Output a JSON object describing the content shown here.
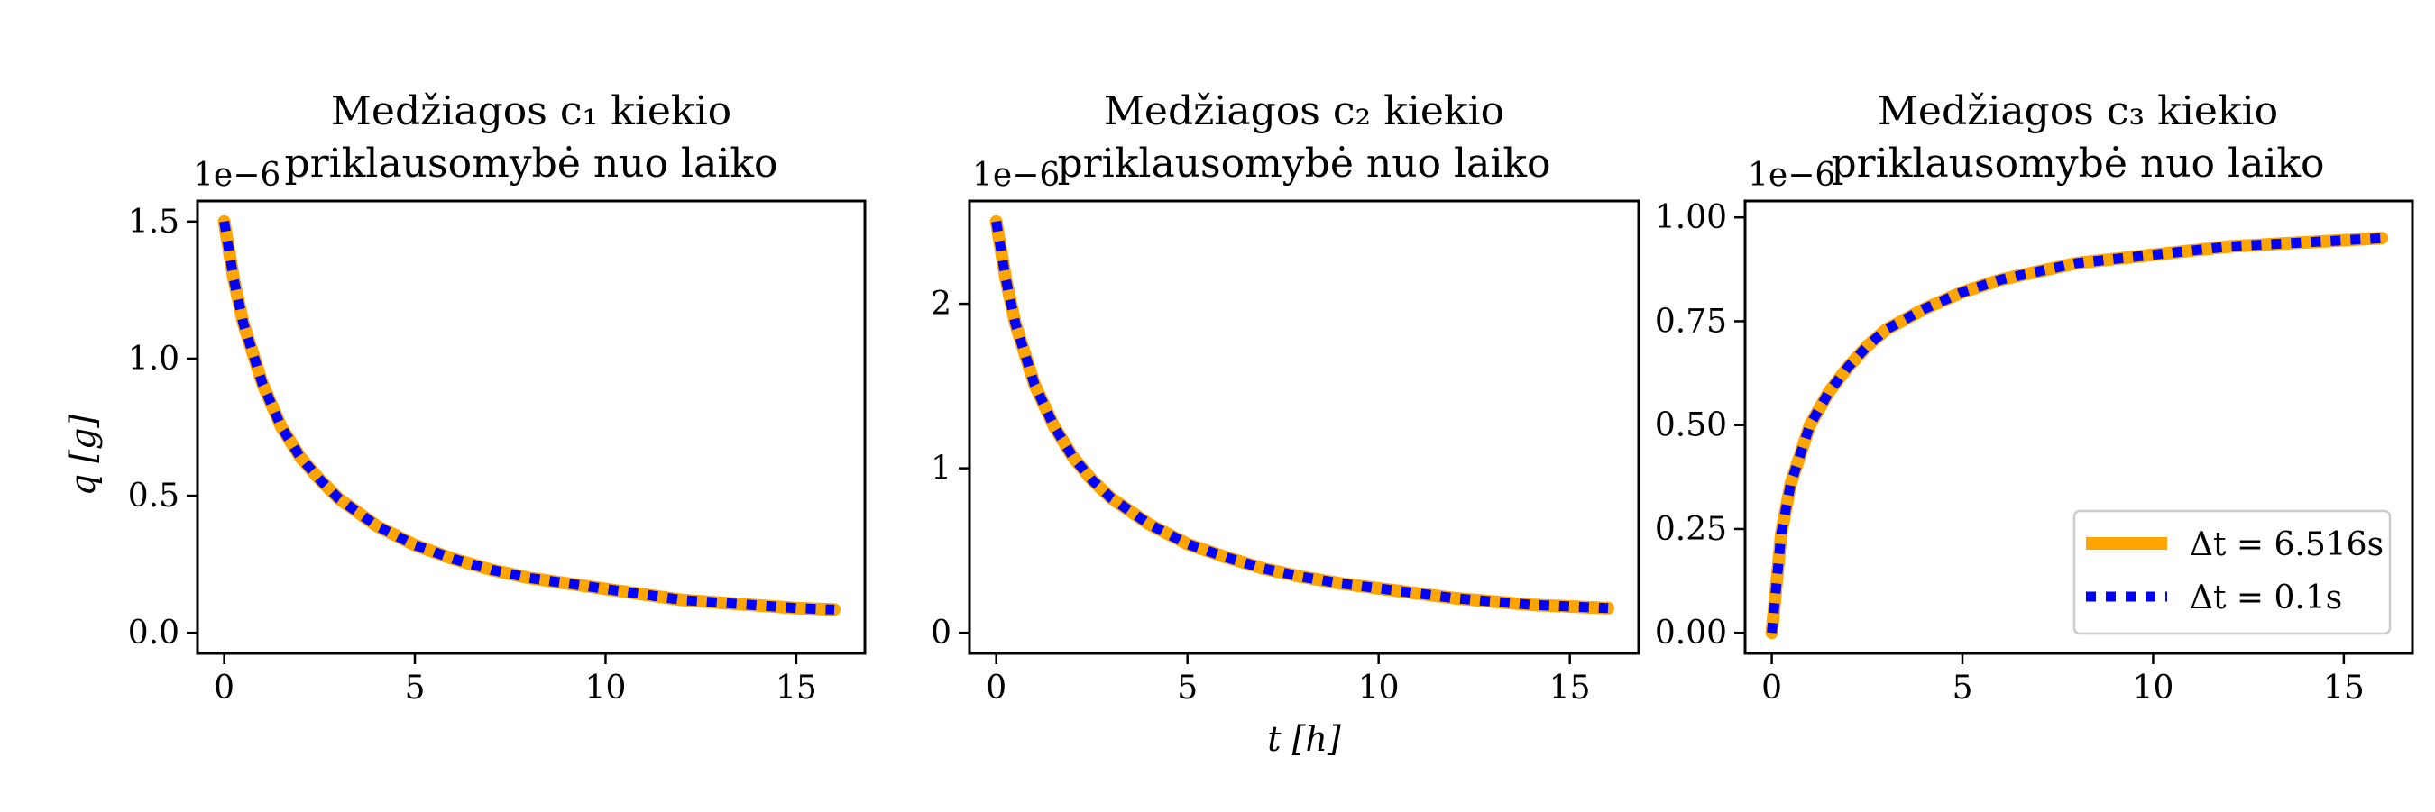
{
  "chart_data": [
    {
      "type": "line",
      "title_line1": "Medžiagos c₁ kiekio",
      "title_line2": "priklausomybė nuo laiko",
      "xlabel": "",
      "ylabel": "q   [g]",
      "offset_text": "1e−6",
      "xlim": [
        -0.7,
        16.8
      ],
      "ylim": [
        -0.075,
        1.575
      ],
      "xticks": [
        0,
        5,
        10,
        15
      ],
      "xtick_labels": [
        "0",
        "5",
        "10",
        "15"
      ],
      "yticks": [
        0.0,
        0.5,
        1.0,
        1.5
      ],
      "ytick_labels": [
        "0.0",
        "0.5",
        "1.0",
        "1.5"
      ],
      "model": "decay",
      "y0": 1.5,
      "x": [
        0,
        0.25,
        0.5,
        1,
        1.5,
        2,
        2.5,
        3,
        4,
        5,
        6,
        7,
        8,
        9,
        10,
        11,
        12,
        13,
        14,
        15,
        16
      ],
      "series": [
        {
          "name": "Δt = 6.516s",
          "color": "#FFA500",
          "style": "solid",
          "values": [
            1.5,
            1.29,
            1.13,
            0.91,
            0.75,
            0.64,
            0.56,
            0.49,
            0.39,
            0.32,
            0.27,
            0.23,
            0.2,
            0.18,
            0.16,
            0.14,
            0.12,
            0.11,
            0.1,
            0.09,
            0.085
          ]
        },
        {
          "name": "Δt = 0.1s",
          "color": "#0000FF",
          "style": "dotted",
          "values": [
            1.5,
            1.29,
            1.13,
            0.91,
            0.75,
            0.64,
            0.56,
            0.49,
            0.39,
            0.32,
            0.27,
            0.23,
            0.2,
            0.18,
            0.16,
            0.14,
            0.12,
            0.11,
            0.1,
            0.09,
            0.085
          ]
        }
      ]
    },
    {
      "type": "line",
      "title_line1": "Medžiagos c₂ kiekio",
      "title_line2": "priklausomybė nuo laiko",
      "xlabel": "t   [h]",
      "ylabel": "",
      "offset_text": "1e−6",
      "xlim": [
        -0.7,
        16.8
      ],
      "ylim": [
        -0.125,
        2.625
      ],
      "xticks": [
        0,
        5,
        10,
        15
      ],
      "xtick_labels": [
        "0",
        "5",
        "10",
        "15"
      ],
      "yticks": [
        0,
        1,
        2
      ],
      "ytick_labels": [
        "0",
        "1",
        "2"
      ],
      "model": "decay",
      "y0": 2.5,
      "x": [
        0,
        0.25,
        0.5,
        1,
        1.5,
        2,
        2.5,
        3,
        4,
        5,
        6,
        7,
        8,
        9,
        10,
        11,
        12,
        13,
        14,
        15,
        16
      ],
      "series": [
        {
          "name": "Δt = 6.516s",
          "color": "#FFA500",
          "style": "solid",
          "values": [
            2.5,
            2.15,
            1.88,
            1.51,
            1.26,
            1.07,
            0.93,
            0.82,
            0.66,
            0.54,
            0.46,
            0.39,
            0.34,
            0.3,
            0.27,
            0.24,
            0.21,
            0.19,
            0.17,
            0.16,
            0.15
          ]
        },
        {
          "name": "Δt = 0.1s",
          "color": "#0000FF",
          "style": "dotted",
          "values": [
            2.5,
            2.15,
            1.88,
            1.51,
            1.26,
            1.07,
            0.93,
            0.82,
            0.66,
            0.54,
            0.46,
            0.39,
            0.34,
            0.3,
            0.27,
            0.24,
            0.21,
            0.19,
            0.17,
            0.16,
            0.15
          ]
        }
      ]
    },
    {
      "type": "line",
      "title_line1": "Medžiagos c₃ kiekio",
      "title_line2": "priklausomybė nuo laiko",
      "xlabel": "",
      "ylabel": "",
      "offset_text": "1e−6",
      "xlim": [
        -0.7,
        16.8
      ],
      "ylim": [
        -0.0495,
        1.0395
      ],
      "xticks": [
        0,
        5,
        10,
        15
      ],
      "xtick_labels": [
        "0",
        "5",
        "10",
        "15"
      ],
      "yticks": [
        0.0,
        0.25,
        0.5,
        0.75,
        1.0
      ],
      "ytick_labels": [
        "0.00",
        "0.25",
        "0.50",
        "0.75",
        "1.00"
      ],
      "model": "growth",
      "y0": 0.0,
      "legend": "lower-right",
      "x": [
        0,
        0.25,
        0.5,
        1,
        1.5,
        2,
        2.5,
        3,
        4,
        5,
        6,
        7,
        8,
        9,
        10,
        11,
        12,
        13,
        14,
        15,
        16
      ],
      "series": [
        {
          "name": "Δt = 6.516s",
          "color": "#FFA500",
          "style": "solid",
          "values": [
            0.0,
            0.24,
            0.36,
            0.5,
            0.58,
            0.64,
            0.69,
            0.73,
            0.78,
            0.82,
            0.85,
            0.87,
            0.89,
            0.9,
            0.91,
            0.92,
            0.93,
            0.935,
            0.94,
            0.945,
            0.95
          ]
        },
        {
          "name": "Δt = 0.1s",
          "color": "#0000FF",
          "style": "dotted",
          "values": [
            0.0,
            0.24,
            0.36,
            0.5,
            0.58,
            0.64,
            0.69,
            0.73,
            0.78,
            0.82,
            0.85,
            0.87,
            0.89,
            0.9,
            0.91,
            0.92,
            0.93,
            0.935,
            0.94,
            0.945,
            0.95
          ]
        }
      ]
    }
  ]
}
